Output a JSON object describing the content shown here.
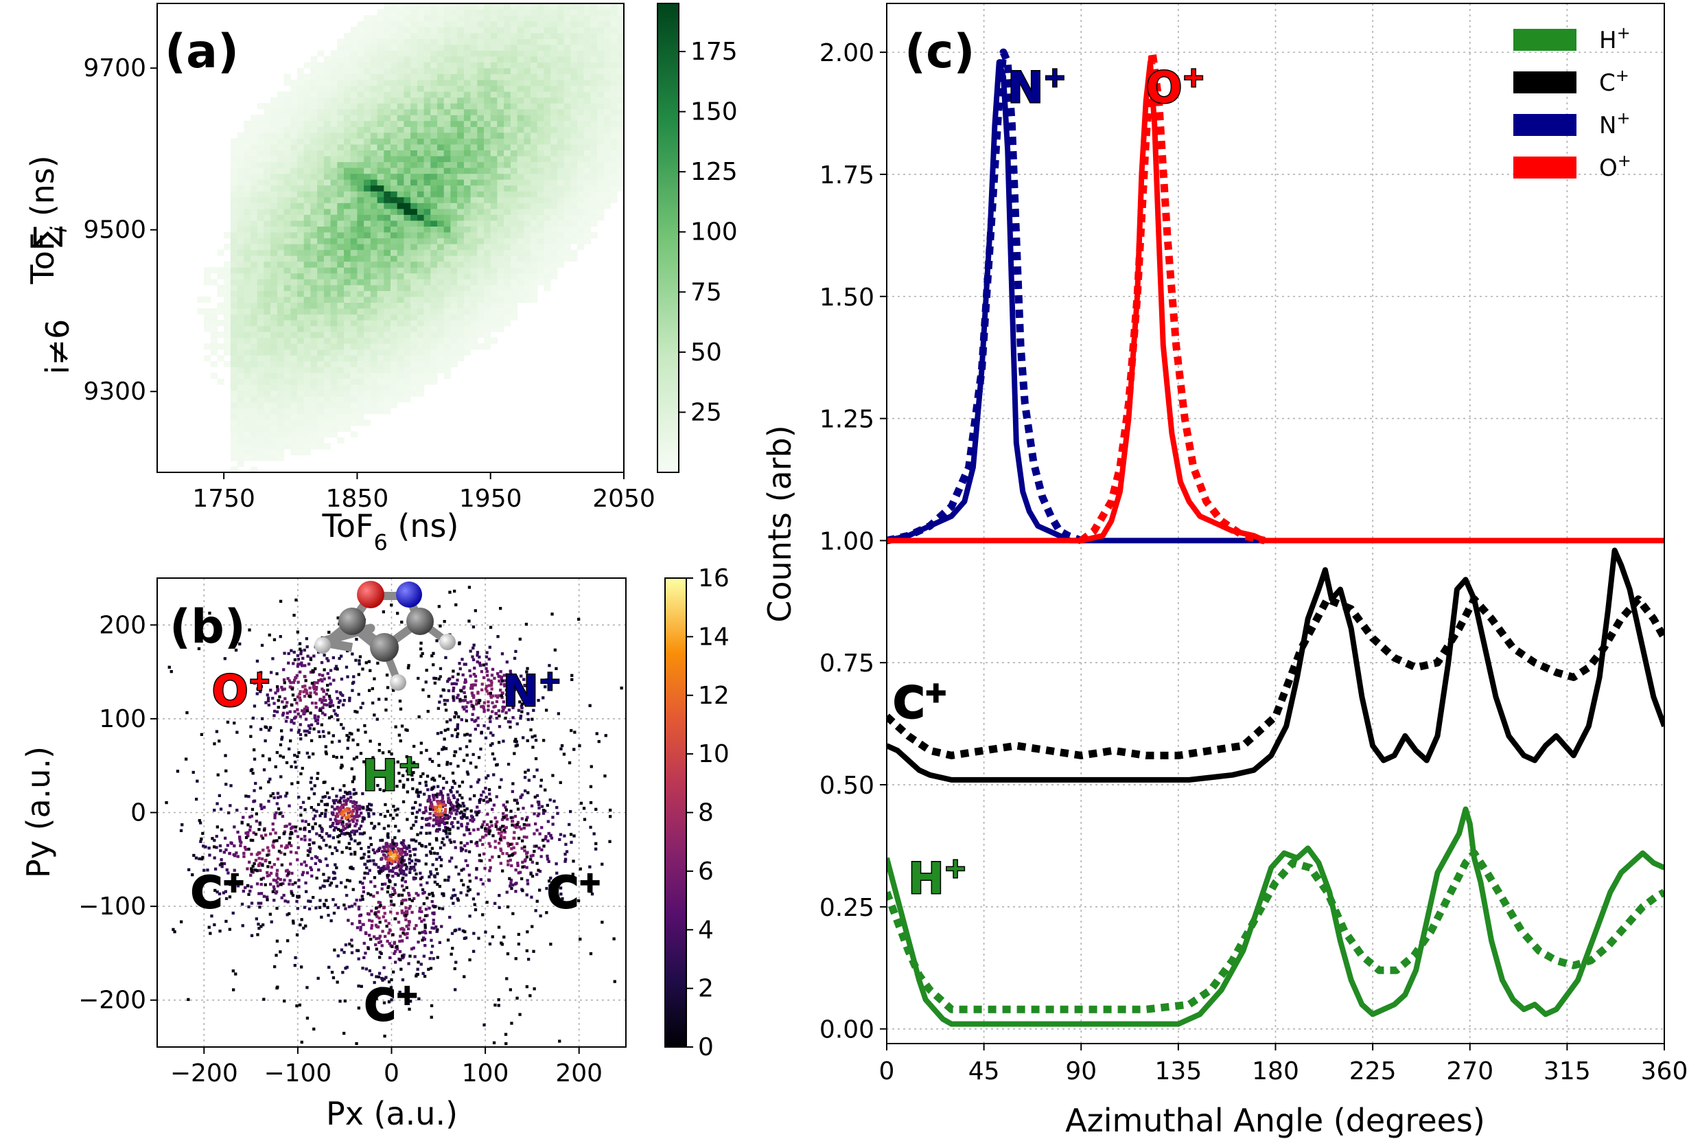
{
  "colors": {
    "h": "#228b22",
    "c": "#000000",
    "n": "#00008b",
    "o": "#ff0000",
    "greens_dark": "#00441b",
    "greens_light": "#f7fcf5"
  },
  "chart_data": [
    {
      "type": "heatmap",
      "panel_label": "(a)",
      "title": "",
      "xlabel": "ToF",
      "xlabel_sub": "6",
      "xlabel_unit": " (ns)",
      "ylabel": "ToF",
      "ylabel_sub": "i",
      "ylabel_unit": " (ns)",
      "ylabel_sum": "∑",
      "ylabel_sum_index": "i≠6",
      "xlim": [
        1700,
        2050
      ],
      "ylim": [
        9200,
        9780
      ],
      "xticks": [
        1750,
        1850,
        1950,
        2050
      ],
      "yticks": [
        9300,
        9500,
        9700
      ],
      "colorbar": {
        "min": 0,
        "max": 195,
        "ticks": [
          25,
          50,
          75,
          100,
          125,
          150,
          175
        ],
        "cmap": "Greens"
      },
      "description": "2D coincidence histogram with broad cloud and a dark diagonal stripe centred near (1880, 9535)"
    },
    {
      "type": "heatmap",
      "panel_label": "(b)",
      "xlabel": "Px (a.u.)",
      "ylabel": "Py (a.u.)",
      "xlim": [
        -250,
        250
      ],
      "ylim": [
        -250,
        250
      ],
      "xticks": [
        -200,
        -100,
        0,
        100,
        200
      ],
      "yticks": [
        -200,
        -100,
        0,
        100,
        200
      ],
      "colorbar": {
        "min": 0,
        "max": 16,
        "ticks": [
          0,
          2,
          4,
          6,
          8,
          10,
          12,
          14,
          16
        ],
        "cmap": "inferno"
      },
      "annotations": [
        {
          "text": "O",
          "sup": "+",
          "x": -160,
          "y": 130,
          "color": "o"
        },
        {
          "text": "N",
          "sup": "+",
          "x": 150,
          "y": 130,
          "color": "n"
        },
        {
          "text": "H",
          "sup": "+",
          "x": 0,
          "y": 40,
          "color": "h"
        },
        {
          "text": "C",
          "sup": "+",
          "x": -185,
          "y": -85,
          "color": "c"
        },
        {
          "text": "C",
          "sup": "+",
          "x": 195,
          "y": -85,
          "color": "c"
        },
        {
          "text": "C",
          "sup": "+",
          "x": 0,
          "y": -205,
          "color": "c"
        }
      ],
      "clusters": [
        {
          "x": -95,
          "y": 130,
          "spread": 28,
          "n": 260
        },
        {
          "x": 100,
          "y": 130,
          "spread": 28,
          "n": 260
        },
        {
          "x": -50,
          "y": 0,
          "spread": 14,
          "n": 130
        },
        {
          "x": 50,
          "y": 5,
          "spread": 14,
          "n": 130
        },
        {
          "x": 0,
          "y": -45,
          "spread": 14,
          "n": 120
        },
        {
          "x": -130,
          "y": -40,
          "spread": 40,
          "n": 330
        },
        {
          "x": 120,
          "y": -30,
          "spread": 40,
          "n": 320
        },
        {
          "x": 0,
          "y": -110,
          "spread": 38,
          "n": 320
        },
        {
          "x": 0,
          "y": 0,
          "spread": 140,
          "n": 900
        }
      ],
      "hotspots": [
        {
          "x": -50,
          "y": 0,
          "v": 14
        },
        {
          "x": 50,
          "y": 5,
          "v": 14
        },
        {
          "x": 0,
          "y": -45,
          "v": 15
        }
      ]
    },
    {
      "type": "line",
      "panel_label": "(c)",
      "xlabel": "Azimuthal Angle (degrees)",
      "ylabel": "Counts (arb)",
      "xlim": [
        0,
        360
      ],
      "ylim": [
        -0.03,
        2.1
      ],
      "xticks": [
        0,
        45,
        90,
        135,
        180,
        225,
        270,
        315,
        360
      ],
      "yticks": [
        0.0,
        0.25,
        0.5,
        0.75,
        1.0,
        1.25,
        1.5,
        1.75,
        2.0
      ],
      "ytick_labels": [
        "0.00",
        "0.25",
        "0.50",
        "0.75",
        "1.00",
        "1.25",
        "1.50",
        "1.75",
        "2.00"
      ],
      "legend": {
        "position": "top-right",
        "entries": [
          {
            "label": "H",
            "sup": "+",
            "color": "h"
          },
          {
            "label": "C",
            "sup": "+",
            "color": "c"
          },
          {
            "label": "N",
            "sup": "+",
            "color": "n"
          },
          {
            "label": "O",
            "sup": "+",
            "color": "o"
          }
        ]
      },
      "annotations": [
        {
          "text": "N",
          "sup": "+",
          "x": 56,
          "y": 1.94,
          "color": "n"
        },
        {
          "text": "O",
          "sup": "+",
          "x": 120,
          "y": 1.94,
          "color": "o"
        },
        {
          "text": "C",
          "sup": "+",
          "x": 3,
          "y": 0.68,
          "color": "c"
        },
        {
          "text": "H",
          "sup": "+",
          "x": 10,
          "y": 0.32,
          "color": "h"
        }
      ],
      "series": [
        {
          "name": "N+ measured",
          "color": "n",
          "style": "solid",
          "x": [
            0,
            10,
            20,
            30,
            36,
            40,
            44,
            48,
            50,
            52,
            54,
            56,
            58,
            60,
            63,
            66,
            70,
            75,
            80,
            85,
            90,
            100,
            120,
            140,
            160,
            175
          ],
          "y": [
            1.0,
            1.01,
            1.03,
            1.05,
            1.08,
            1.15,
            1.35,
            1.65,
            1.85,
            1.98,
            1.95,
            1.8,
            1.5,
            1.2,
            1.1,
            1.06,
            1.03,
            1.02,
            1.01,
            1.0,
            1.0,
            1.0,
            1.0,
            1.0,
            1.0,
            1.0
          ]
        },
        {
          "name": "N+ model",
          "color": "n",
          "style": "dashed",
          "x": [
            0,
            10,
            20,
            30,
            38,
            44,
            48,
            52,
            54,
            56,
            58,
            60,
            62,
            64,
            68,
            72,
            76,
            80,
            84,
            90
          ],
          "y": [
            1.0,
            1.01,
            1.03,
            1.07,
            1.15,
            1.35,
            1.62,
            1.9,
            2.0,
            1.98,
            1.85,
            1.62,
            1.4,
            1.28,
            1.16,
            1.09,
            1.05,
            1.02,
            1.01,
            1.0
          ]
        },
        {
          "name": "O+ measured",
          "color": "o",
          "style": "solid",
          "x": [
            0,
            60,
            90,
            100,
            104,
            108,
            112,
            116,
            118,
            120,
            122,
            124,
            126,
            128,
            132,
            136,
            140,
            145,
            150,
            160,
            170,
            175,
            180,
            360
          ],
          "y": [
            1.0,
            1.0,
            1.0,
            1.01,
            1.04,
            1.1,
            1.25,
            1.5,
            1.75,
            1.9,
            1.98,
            1.85,
            1.62,
            1.4,
            1.22,
            1.12,
            1.08,
            1.05,
            1.04,
            1.02,
            1.01,
            1.0,
            1.0,
            1.0
          ]
        },
        {
          "name": "O+ model",
          "color": "o",
          "style": "dashed",
          "x": [
            90,
            96,
            100,
            104,
            108,
            112,
            116,
            120,
            123,
            126,
            130,
            134,
            138,
            142,
            148,
            155,
            165,
            175
          ],
          "y": [
            1.0,
            1.02,
            1.05,
            1.08,
            1.15,
            1.28,
            1.5,
            1.82,
            2.0,
            1.9,
            1.62,
            1.4,
            1.25,
            1.15,
            1.08,
            1.04,
            1.01,
            1.0
          ]
        },
        {
          "name": "C+ measured",
          "color": "c",
          "style": "solid",
          "x": [
            0,
            5,
            10,
            15,
            20,
            30,
            40,
            60,
            80,
            100,
            120,
            140,
            160,
            170,
            178,
            185,
            190,
            195,
            200,
            203,
            206,
            210,
            215,
            220,
            225,
            230,
            235,
            240,
            245,
            250,
            255,
            260,
            264,
            268,
            272,
            276,
            282,
            288,
            295,
            300,
            305,
            310,
            318,
            325,
            330,
            334,
            337,
            340,
            344,
            350,
            355,
            360
          ],
          "y": [
            0.58,
            0.57,
            0.55,
            0.53,
            0.52,
            0.51,
            0.51,
            0.51,
            0.51,
            0.51,
            0.51,
            0.51,
            0.52,
            0.53,
            0.56,
            0.62,
            0.72,
            0.84,
            0.9,
            0.94,
            0.88,
            0.9,
            0.82,
            0.68,
            0.58,
            0.55,
            0.56,
            0.6,
            0.57,
            0.55,
            0.6,
            0.75,
            0.9,
            0.92,
            0.88,
            0.8,
            0.68,
            0.6,
            0.56,
            0.55,
            0.58,
            0.6,
            0.56,
            0.62,
            0.72,
            0.86,
            0.98,
            0.95,
            0.9,
            0.78,
            0.68,
            0.62
          ]
        },
        {
          "name": "C+ model",
          "color": "c",
          "style": "dashed",
          "x": [
            0,
            10,
            20,
            30,
            45,
            60,
            75,
            90,
            105,
            120,
            135,
            150,
            165,
            180,
            192,
            204,
            215,
            225,
            235,
            245,
            255,
            265,
            272,
            280,
            290,
            300,
            310,
            318,
            325,
            332,
            340,
            348,
            355,
            360
          ],
          "y": [
            0.64,
            0.6,
            0.57,
            0.56,
            0.57,
            0.58,
            0.57,
            0.56,
            0.57,
            0.56,
            0.56,
            0.57,
            0.58,
            0.64,
            0.78,
            0.88,
            0.86,
            0.8,
            0.76,
            0.74,
            0.75,
            0.82,
            0.88,
            0.84,
            0.78,
            0.75,
            0.73,
            0.72,
            0.74,
            0.78,
            0.84,
            0.88,
            0.84,
            0.8
          ]
        },
        {
          "name": "H+ measured",
          "color": "h",
          "style": "solid",
          "x": [
            0,
            3,
            6,
            9,
            12,
            15,
            18,
            22,
            26,
            30,
            40,
            60,
            80,
            100,
            120,
            135,
            145,
            155,
            165,
            172,
            178,
            184,
            190,
            195,
            200,
            205,
            210,
            215,
            220,
            225,
            230,
            235,
            240,
            245,
            250,
            255,
            260,
            265,
            268,
            270,
            272,
            275,
            280,
            285,
            290,
            295,
            300,
            305,
            310,
            315,
            320,
            325,
            330,
            335,
            340,
            345,
            350,
            355,
            360
          ],
          "y": [
            0.35,
            0.3,
            0.25,
            0.2,
            0.15,
            0.1,
            0.06,
            0.04,
            0.02,
            0.01,
            0.01,
            0.01,
            0.01,
            0.01,
            0.01,
            0.01,
            0.03,
            0.08,
            0.16,
            0.25,
            0.33,
            0.36,
            0.35,
            0.37,
            0.34,
            0.28,
            0.18,
            0.1,
            0.05,
            0.03,
            0.04,
            0.05,
            0.07,
            0.12,
            0.22,
            0.32,
            0.36,
            0.4,
            0.45,
            0.42,
            0.35,
            0.3,
            0.18,
            0.1,
            0.06,
            0.04,
            0.05,
            0.03,
            0.04,
            0.07,
            0.1,
            0.16,
            0.22,
            0.28,
            0.32,
            0.34,
            0.36,
            0.34,
            0.33
          ]
        },
        {
          "name": "H+ model",
          "color": "h",
          "style": "dashed",
          "x": [
            0,
            5,
            10,
            15,
            20,
            25,
            30,
            40,
            60,
            80,
            100,
            120,
            140,
            150,
            160,
            170,
            180,
            188,
            196,
            204,
            212,
            220,
            228,
            236,
            244,
            252,
            260,
            268,
            272,
            278,
            286,
            294,
            302,
            310,
            318,
            326,
            334,
            342,
            350,
            356,
            360
          ],
          "y": [
            0.28,
            0.22,
            0.16,
            0.11,
            0.08,
            0.06,
            0.04,
            0.04,
            0.04,
            0.04,
            0.04,
            0.04,
            0.05,
            0.08,
            0.14,
            0.22,
            0.3,
            0.34,
            0.33,
            0.28,
            0.2,
            0.15,
            0.12,
            0.12,
            0.15,
            0.2,
            0.27,
            0.34,
            0.36,
            0.32,
            0.26,
            0.2,
            0.16,
            0.14,
            0.13,
            0.14,
            0.17,
            0.21,
            0.25,
            0.27,
            0.28
          ]
        }
      ]
    }
  ]
}
